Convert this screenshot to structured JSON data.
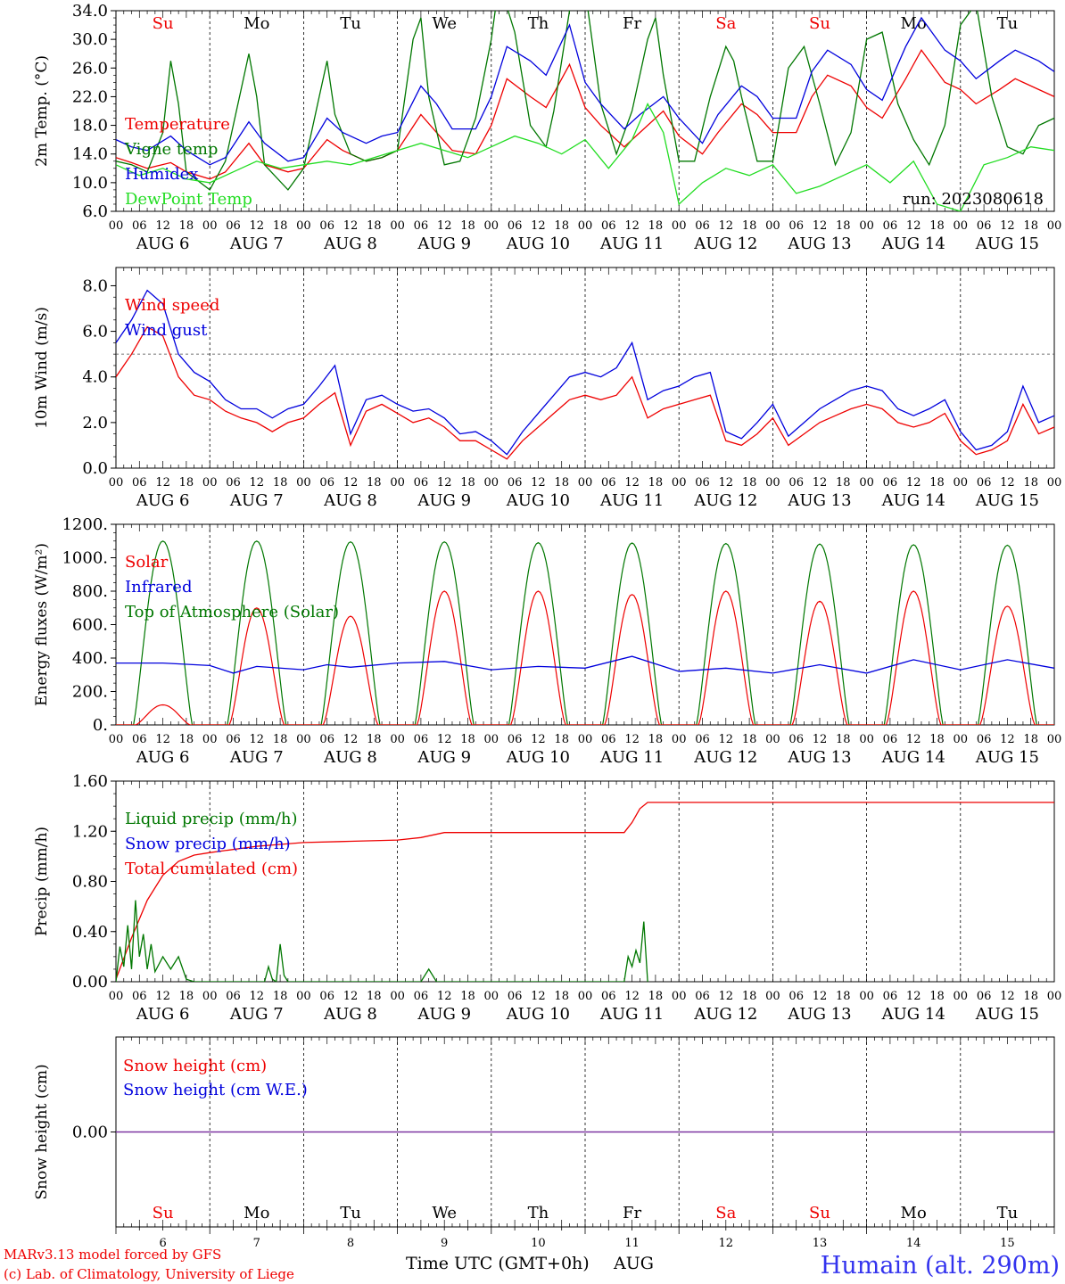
{
  "footer": {
    "model": "MARv3.13 model forced by GFS",
    "credit": "(c) Lab. of Climatology, University of Liege",
    "time_axis": "Time UTC (GMT+0h)",
    "month": "AUG",
    "station": "Humain (alt. 290m)"
  },
  "run_label": "run: 2023080618",
  "days": [
    "Su",
    "Mo",
    "Tu",
    "We",
    "Th",
    "Fr",
    "Sa",
    "Su",
    "Mo",
    "Tu"
  ],
  "weekend_days": [
    "Su",
    "Sa"
  ],
  "day_numbers": [
    "6",
    "7",
    "8",
    "9",
    "10",
    "11",
    "12",
    "13",
    "14",
    "15"
  ],
  "date_labels": [
    "AUG 6",
    "AUG 7",
    "AUG 8",
    "AUG 9",
    "AUG 10",
    "AUG 11",
    "AUG 12",
    "AUG 13",
    "AUG 14",
    "AUG 15"
  ],
  "hour_labels": [
    "00",
    "06",
    "12",
    "18"
  ],
  "colors": {
    "red": "#ee0000",
    "green": "#007700",
    "blue": "#0000dd",
    "lightgreen": "#22dd22",
    "purple": "#7a2f9e"
  },
  "chart_data": [
    {
      "type": "line",
      "ylabel": "2m Temp. (°C)",
      "ylim": [
        6,
        34
      ],
      "yticks": [
        "6.0",
        "10.0",
        "14.0",
        "18.0",
        "22.0",
        "26.0",
        "30.0",
        "34.0"
      ],
      "legend": [
        "Temperature",
        "Vigne temp",
        "Humidex",
        "DewPoint Temp"
      ],
      "series": [
        {
          "name": "Temperature",
          "color": "red",
          "x": [
            0,
            4,
            8,
            14,
            18,
            24,
            28,
            34,
            38,
            44,
            48,
            54,
            58,
            64,
            68,
            72,
            78,
            82,
            86,
            92,
            96,
            100,
            106,
            110,
            116,
            120,
            124,
            130,
            134,
            140,
            144,
            150,
            154,
            160,
            164,
            168,
            174,
            178,
            182,
            188,
            192,
            196,
            202,
            206,
            212,
            216,
            220,
            226,
            230,
            236,
            240
          ],
          "y": [
            13.5,
            12.8,
            12.0,
            12.8,
            11.5,
            10.5,
            11.5,
            15.5,
            12.5,
            11.5,
            12.0,
            16.0,
            14.5,
            13.0,
            13.5,
            14.5,
            19.5,
            17.0,
            14.5,
            14.0,
            18.0,
            24.5,
            22.0,
            20.5,
            26.5,
            20.5,
            18.0,
            15.0,
            17.0,
            20.0,
            16.5,
            14.0,
            17.0,
            21.0,
            19.5,
            17.0,
            17.0,
            22.0,
            25.0,
            23.5,
            20.5,
            19.0,
            24.5,
            28.5,
            24.0,
            23.0,
            21.0,
            23.0,
            24.5,
            23.0,
            22.0
          ]
        },
        {
          "name": "Vigne temp",
          "color": "green",
          "x": [
            0,
            4,
            8,
            12,
            14,
            16,
            18,
            24,
            28,
            32,
            34,
            36,
            38,
            44,
            48,
            52,
            54,
            56,
            60,
            64,
            68,
            72,
            76,
            78,
            80,
            84,
            88,
            92,
            96,
            98,
            102,
            106,
            110,
            112,
            116,
            120,
            124,
            128,
            132,
            136,
            138,
            140,
            144,
            148,
            152,
            156,
            158,
            160,
            164,
            168,
            172,
            176,
            180,
            184,
            188,
            192,
            196,
            200,
            204,
            208,
            212,
            216,
            220,
            224,
            228,
            232,
            236,
            240
          ],
          "y": [
            13.0,
            12.5,
            11.5,
            17.0,
            27.0,
            21.0,
            11.5,
            9.0,
            13.0,
            23.0,
            28.0,
            22.0,
            12.5,
            9.0,
            12.0,
            22.0,
            27.0,
            19.5,
            14.0,
            13.0,
            13.5,
            14.5,
            30.0,
            33.0,
            22.0,
            12.5,
            13.0,
            19.0,
            30.0,
            38.0,
            31.0,
            18.0,
            15.0,
            20.0,
            34.0,
            37.0,
            21.0,
            14.0,
            20.0,
            30.0,
            33.0,
            25.0,
            13.0,
            13.0,
            22.0,
            29.0,
            27.0,
            22.0,
            13.0,
            13.0,
            26.0,
            29.0,
            21.0,
            12.5,
            17.0,
            30.0,
            31.0,
            21.0,
            16.0,
            12.5,
            18.0,
            32.0,
            35.0,
            22.0,
            15.0,
            14.0,
            18.0,
            19.0
          ]
        },
        {
          "name": "Humidex",
          "color": "blue",
          "x": [
            0,
            4,
            8,
            14,
            18,
            24,
            28,
            34,
            38,
            44,
            48,
            54,
            58,
            64,
            68,
            72,
            78,
            82,
            86,
            92,
            96,
            100,
            106,
            110,
            116,
            120,
            124,
            130,
            134,
            140,
            144,
            150,
            154,
            160,
            164,
            168,
            174,
            178,
            182,
            188,
            192,
            196,
            202,
            206,
            212,
            216,
            220,
            226,
            230,
            236,
            240
          ],
          "y": [
            16.0,
            15.0,
            14.5,
            16.5,
            14.5,
            12.5,
            13.5,
            18.5,
            15.5,
            13.0,
            13.5,
            19.0,
            17.0,
            15.5,
            16.5,
            17.0,
            23.5,
            21.0,
            17.5,
            17.5,
            22.0,
            29.0,
            27.0,
            25.0,
            32.0,
            24.0,
            21.0,
            17.5,
            19.5,
            22.0,
            19.0,
            15.5,
            19.5,
            23.5,
            22.0,
            19.0,
            19.0,
            25.5,
            28.5,
            26.5,
            23.0,
            21.5,
            29.0,
            33.0,
            28.5,
            27.0,
            24.5,
            27.0,
            28.5,
            27.0,
            25.5
          ]
        },
        {
          "name": "DewPoint Temp",
          "color": "lightgreen",
          "x": [
            0,
            6,
            12,
            18,
            24,
            30,
            36,
            42,
            48,
            54,
            60,
            66,
            72,
            78,
            84,
            90,
            96,
            102,
            108,
            114,
            120,
            126,
            132,
            136,
            140,
            144,
            150,
            156,
            162,
            168,
            174,
            180,
            186,
            192,
            198,
            204,
            210,
            216,
            222,
            228,
            234,
            240
          ],
          "y": [
            12.5,
            11.0,
            12.0,
            10.5,
            10.0,
            11.5,
            13.0,
            12.0,
            12.5,
            13.0,
            12.5,
            13.5,
            14.5,
            15.5,
            14.5,
            13.5,
            15.0,
            16.5,
            15.5,
            14.0,
            16.0,
            12.0,
            16.0,
            21.0,
            17.0,
            7.0,
            10.0,
            12.0,
            11.0,
            12.5,
            8.5,
            9.5,
            11.0,
            12.5,
            10.0,
            13.0,
            7.0,
            6.0,
            12.5,
            13.5,
            15.0,
            14.5
          ]
        }
      ]
    },
    {
      "type": "line",
      "ylabel": "10m Wind (m/s)",
      "ylim": [
        0,
        8.8
      ],
      "yticks": [
        "0.0",
        "2.0",
        "4.0",
        "6.0",
        "8.0"
      ],
      "reference_y": 5.0,
      "legend": [
        "Wind speed",
        "Wind gust"
      ],
      "series": [
        {
          "name": "Wind speed",
          "color": "red",
          "x": [
            0,
            4,
            8,
            12,
            16,
            20,
            24,
            28,
            32,
            36,
            40,
            44,
            48,
            52,
            56,
            60,
            64,
            68,
            72,
            76,
            80,
            84,
            88,
            92,
            96,
            100,
            104,
            108,
            112,
            116,
            120,
            124,
            128,
            132,
            136,
            140,
            144,
            148,
            152,
            156,
            160,
            164,
            168,
            172,
            176,
            180,
            184,
            188,
            192,
            196,
            200,
            204,
            208,
            212,
            216,
            220,
            224,
            228,
            232,
            236,
            240
          ],
          "y": [
            4.0,
            5.0,
            6.2,
            5.8,
            4.0,
            3.2,
            3.0,
            2.5,
            2.2,
            2.0,
            1.6,
            2.0,
            2.2,
            2.8,
            3.3,
            1.0,
            2.5,
            2.8,
            2.4,
            2.0,
            2.2,
            1.8,
            1.2,
            1.2,
            0.8,
            0.4,
            1.2,
            1.8,
            2.4,
            3.0,
            3.2,
            3.0,
            3.2,
            4.0,
            2.2,
            2.6,
            2.8,
            3.0,
            3.2,
            1.2,
            1.0,
            1.5,
            2.2,
            1.0,
            1.5,
            2.0,
            2.3,
            2.6,
            2.8,
            2.6,
            2.0,
            1.8,
            2.0,
            2.4,
            1.2,
            0.6,
            0.8,
            1.2,
            2.8,
            1.5,
            1.8
          ]
        },
        {
          "name": "Wind gust",
          "color": "blue",
          "x": [
            0,
            4,
            8,
            12,
            16,
            20,
            24,
            28,
            32,
            36,
            40,
            44,
            48,
            52,
            56,
            60,
            64,
            68,
            72,
            76,
            80,
            84,
            88,
            92,
            96,
            100,
            104,
            108,
            112,
            116,
            120,
            124,
            128,
            132,
            136,
            140,
            144,
            148,
            152,
            156,
            160,
            164,
            168,
            172,
            176,
            180,
            184,
            188,
            192,
            196,
            200,
            204,
            208,
            212,
            216,
            220,
            224,
            228,
            232,
            236,
            240
          ],
          "y": [
            5.5,
            6.5,
            7.8,
            7.2,
            5.0,
            4.2,
            3.8,
            3.0,
            2.6,
            2.6,
            2.2,
            2.6,
            2.8,
            3.6,
            4.5,
            1.5,
            3.0,
            3.2,
            2.8,
            2.5,
            2.6,
            2.2,
            1.5,
            1.6,
            1.2,
            0.6,
            1.6,
            2.4,
            3.2,
            4.0,
            4.2,
            4.0,
            4.4,
            5.5,
            3.0,
            3.4,
            3.6,
            4.0,
            4.2,
            1.6,
            1.3,
            2.0,
            2.8,
            1.4,
            2.0,
            2.6,
            3.0,
            3.4,
            3.6,
            3.4,
            2.6,
            2.3,
            2.6,
            3.0,
            1.6,
            0.8,
            1.0,
            1.6,
            3.6,
            2.0,
            2.3
          ]
        }
      ]
    },
    {
      "type": "line",
      "ylabel": "Energy fluxes (W/m²)",
      "ylim": [
        0,
        1200
      ],
      "yticks": [
        "0.",
        "200.",
        "400.",
        "600.",
        "800.",
        "1000.",
        "1200."
      ],
      "legend": [
        "Solar",
        "Infrared",
        "Top of Atmosphere (Solar)"
      ],
      "toa_peaks": [
        1100,
        1100,
        1095,
        1095,
        1090,
        1088,
        1085,
        1082,
        1078,
        1075
      ],
      "solar_peaks": [
        120,
        700,
        650,
        800,
        800,
        780,
        800,
        740,
        800,
        710
      ],
      "series": [
        {
          "name": "Infrared",
          "color": "blue",
          "x": [
            0,
            12,
            24,
            30,
            36,
            48,
            54,
            60,
            72,
            84,
            96,
            108,
            120,
            132,
            144,
            156,
            168,
            180,
            192,
            204,
            216,
            228,
            240
          ],
          "y": [
            370,
            370,
            355,
            310,
            350,
            330,
            360,
            345,
            370,
            380,
            330,
            350,
            340,
            410,
            320,
            340,
            310,
            360,
            310,
            390,
            330,
            390,
            340
          ]
        }
      ]
    },
    {
      "type": "line",
      "ylabel": "Precip (mm/h)",
      "ylim": [
        0,
        1.6
      ],
      "yticks": [
        "0.00",
        "0.40",
        "0.80",
        "1.20",
        "1.60"
      ],
      "legend": [
        "Liquid precip (mm/h)",
        "Snow precip (mm/h)",
        "Total cumulated (cm)"
      ],
      "series": [
        {
          "name": "Total cumulated (cm)",
          "color": "red",
          "x": [
            0,
            4,
            8,
            12,
            16,
            20,
            24,
            36,
            48,
            60,
            72,
            78,
            84,
            96,
            108,
            120,
            130,
            132,
            134,
            136,
            240
          ],
          "y": [
            0.02,
            0.35,
            0.65,
            0.85,
            0.96,
            1.01,
            1.03,
            1.08,
            1.11,
            1.12,
            1.13,
            1.15,
            1.19,
            1.19,
            1.19,
            1.19,
            1.19,
            1.27,
            1.38,
            1.43,
            1.43
          ]
        },
        {
          "name": "Liquid precip (mm/h)",
          "color": "green",
          "x": [
            0,
            1,
            2,
            3,
            4,
            5,
            6,
            7,
            8,
            9,
            10,
            12,
            14,
            16,
            18,
            20,
            38,
            39,
            40,
            41,
            42,
            43,
            44,
            78,
            80,
            82,
            130,
            131,
            132,
            133,
            134,
            135,
            136
          ],
          "y": [
            0.0,
            0.28,
            0.12,
            0.45,
            0.1,
            0.65,
            0.2,
            0.38,
            0.1,
            0.3,
            0.08,
            0.2,
            0.1,
            0.2,
            0.02,
            0.0,
            0.0,
            0.12,
            0.02,
            0.0,
            0.3,
            0.05,
            0.0,
            0.0,
            0.1,
            0.0,
            0.0,
            0.2,
            0.12,
            0.25,
            0.15,
            0.48,
            0.0
          ]
        }
      ]
    },
    {
      "type": "line",
      "ylabel": "Snow height (cm)",
      "ylim": [
        -1,
        1
      ],
      "yticks": [
        "0.00"
      ],
      "legend": [
        "Snow height (cm)",
        "Snow height (cm W.E.)"
      ],
      "series": [
        {
          "name": "Snow height (cm)",
          "color": "red",
          "x": [
            0,
            240
          ],
          "y": [
            0,
            0
          ]
        },
        {
          "name": "Snow height (cm W.E.)",
          "color": "blue",
          "x": [
            0,
            240
          ],
          "y": [
            0,
            0
          ]
        }
      ]
    }
  ]
}
